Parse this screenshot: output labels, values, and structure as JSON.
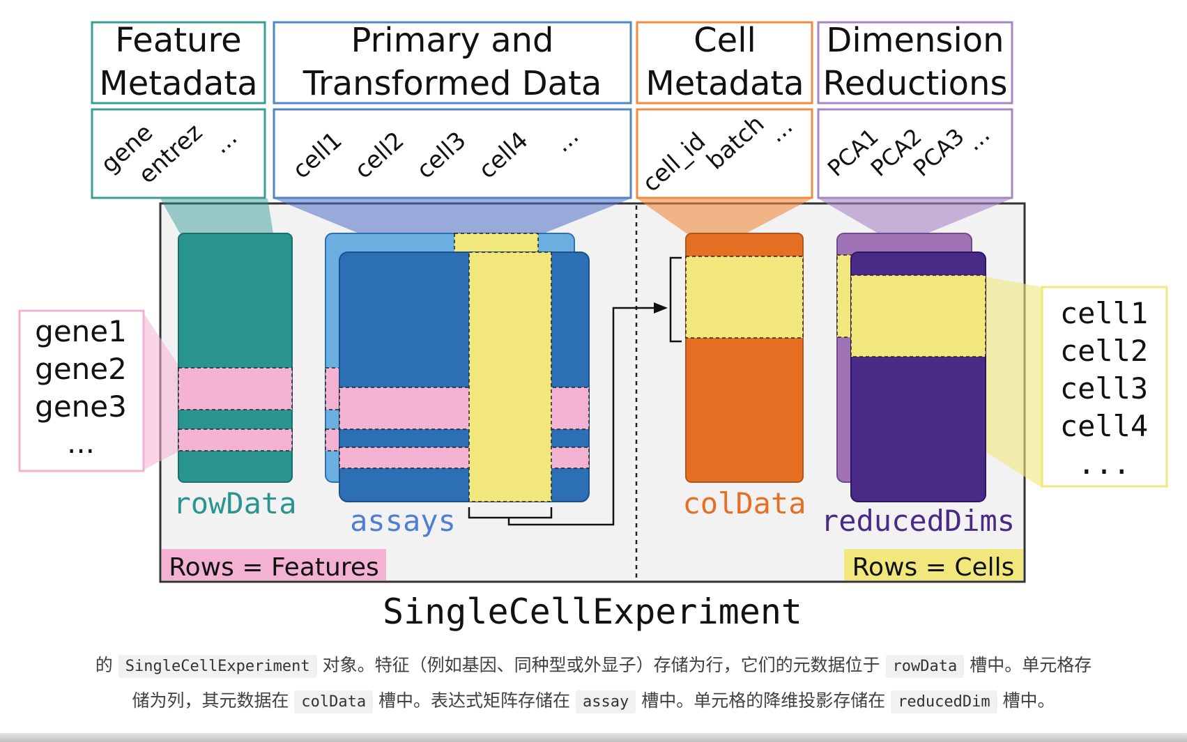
{
  "panels": {
    "feature_metadata": {
      "title_line1": "Feature",
      "title_line2": "Metadata",
      "columns": [
        "gene",
        "entrez",
        "..."
      ]
    },
    "primary_data": {
      "title_line1": "Primary and",
      "title_line2": "Transformed Data",
      "columns": [
        "cell1",
        "cell2",
        "cell3",
        "cell4",
        "..."
      ]
    },
    "cell_metadata": {
      "title_line1": "Cell",
      "title_line2": "Metadata",
      "columns": [
        "cell_id",
        "batch",
        "..."
      ]
    },
    "dimension_reductions": {
      "title_line1": "Dimension",
      "title_line2": "Reductions",
      "columns": [
        "PCA1",
        "PCA2",
        "PCA3",
        "..."
      ]
    }
  },
  "gene_list": [
    "gene1",
    "gene2",
    "gene3",
    "..."
  ],
  "cell_list": [
    "cell1",
    "cell2",
    "cell3",
    "cell4",
    "..."
  ],
  "slots": {
    "row_data": "rowData",
    "assays": "assays",
    "col_data": "colData",
    "reduced_dims": "reducedDims"
  },
  "tags": {
    "rows_features": "Rows = Features",
    "rows_cells": "Rows = Cells"
  },
  "object_name": "SingleCellExperiment",
  "caption": {
    "t1": "的 ",
    "c1": "SingleCellExperiment",
    "t2": " 对象。特征（例如基因、同种型或外显子）存储为行，它们的元数据位于 ",
    "c2": "rowData",
    "t3": " 槽中。单元格存",
    "t4": "储为列，其元数据在 ",
    "c3": "colData",
    "t5": " 槽中。表达式矩阵存储在 ",
    "c4": "assay",
    "t6": " 槽中。单元格的降维投影存储在 ",
    "c5": "reducedDim",
    "t7": " 槽中。"
  },
  "colors": {
    "teal": "#2a9490",
    "assay_light": "#6aafe0",
    "assay_dark": "#2d6fb5",
    "orange": "#e56f22",
    "purple_light": "#9f73b6",
    "purple_dark": "#4a2a87",
    "yellow": "#f2e77d",
    "pink": "#f4b2d3",
    "teal_border": "#3a9c97",
    "blue_border": "#4f86c6",
    "orange_border": "#ef8a3e",
    "purple_border": "#a784c6",
    "panel_bg": "#f2f2f2"
  }
}
